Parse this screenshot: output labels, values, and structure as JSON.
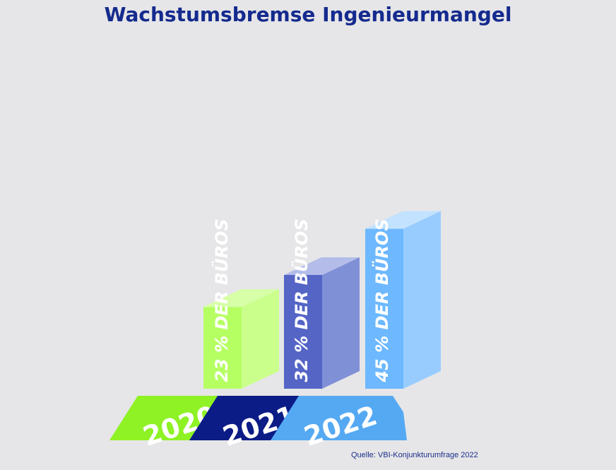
{
  "chart_data": {
    "type": "bar",
    "title": "Wachstumsbremse Ingenieurmangel",
    "categories": [
      "2020",
      "2021",
      "2022"
    ],
    "values": [
      23,
      32,
      45
    ],
    "unit": "%",
    "value_labels": [
      "23 % DER BÜROS",
      "32 % DER BÜROS",
      "45 % DER BÜROS"
    ],
    "xlabel": "",
    "ylabel": "",
    "grid": false,
    "legend": "none",
    "style": "3d-isometric",
    "colors": {
      "2020": {
        "front": "#b6ff63",
        "side": "#cbff8c",
        "top": "#d7ffa8",
        "base": "#8ef225"
      },
      "2021": {
        "front": "#5565c6",
        "side": "#8090d6",
        "top": "#b4bde9",
        "base": "#0b1c86"
      },
      "2022": {
        "front": "#6db8ff",
        "side": "#98ccff",
        "top": "#c2e2ff",
        "base": "#55a9f3"
      }
    }
  },
  "source": "Quelle: VBI-Konjunkturumfrage 2022",
  "colors": {
    "title": "#142a8e",
    "background": "#e6e6e8",
    "label_text": "#ffffff"
  }
}
